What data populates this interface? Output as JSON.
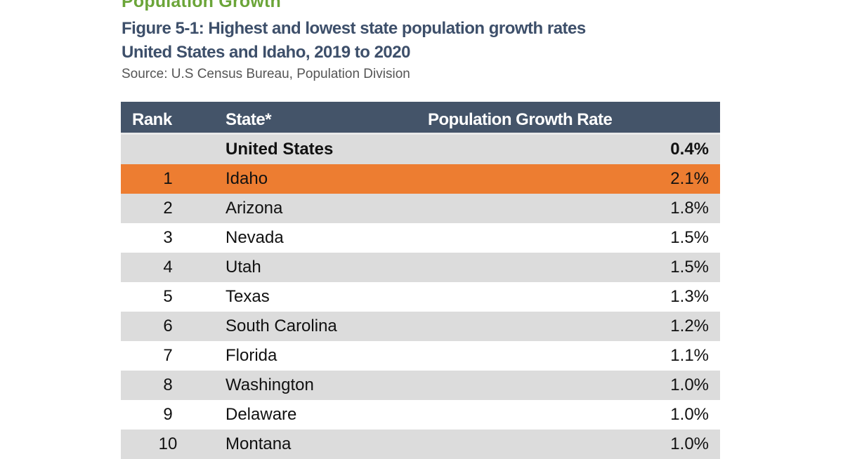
{
  "header": {
    "section_title": "Population Growth",
    "figure_title": "Figure 5-1: Highest and lowest state population growth rates",
    "figure_subtitle": "United States and Idaho, 2019 to 2020",
    "source": "Source: U.S Census Bureau, Population Division"
  },
  "colors": {
    "section_title": "#6ba539",
    "figure_title": "#3d4f6a",
    "table_header_bg": "#445469",
    "row_gray": "#dcdcdc",
    "row_highlight": "#ed7d31"
  },
  "chart_data": {
    "type": "table",
    "columns": [
      "Rank",
      "State*",
      "Population Growth Rate"
    ],
    "summary_row": {
      "rank": "",
      "state": "United States",
      "rate": "0.4%"
    },
    "highlighted_state": "Idaho",
    "rows": [
      {
        "rank": "1",
        "state": "Idaho",
        "rate": "2.1%"
      },
      {
        "rank": "2",
        "state": "Arizona",
        "rate": "1.8%"
      },
      {
        "rank": "3",
        "state": "Nevada",
        "rate": "1.5%"
      },
      {
        "rank": "4",
        "state": "Utah",
        "rate": "1.5%"
      },
      {
        "rank": "5",
        "state": "Texas",
        "rate": "1.3%"
      },
      {
        "rank": "6",
        "state": "South Carolina",
        "rate": "1.2%"
      },
      {
        "rank": "7",
        "state": "Florida",
        "rate": "1.1%"
      },
      {
        "rank": "8",
        "state": "Washington",
        "rate": "1.0%"
      },
      {
        "rank": "9",
        "state": "Delaware",
        "rate": "1.0%"
      },
      {
        "rank": "10",
        "state": "Montana",
        "rate": "1.0%"
      }
    ]
  }
}
